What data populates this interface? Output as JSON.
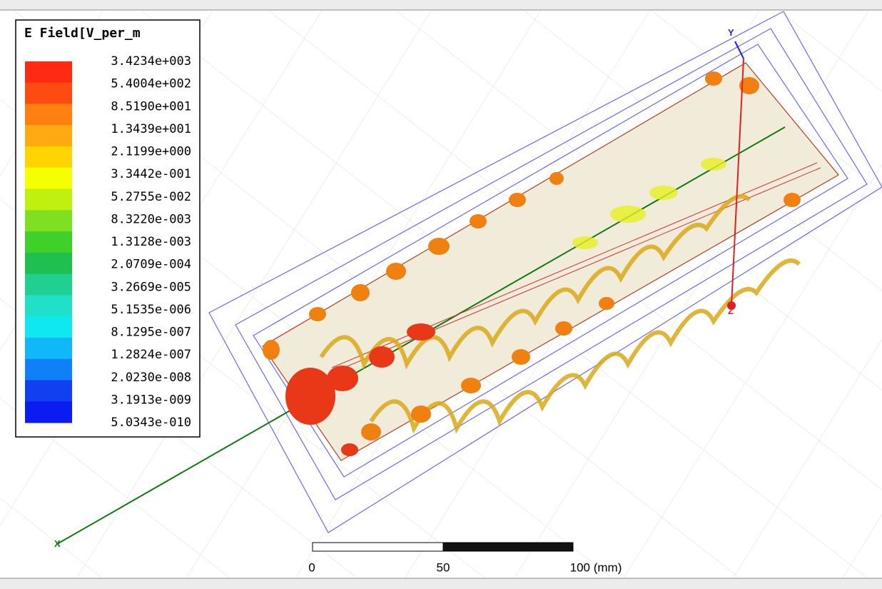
{
  "legend": {
    "title": "E Field[V_per_m",
    "labels": [
      "3.4234e+003",
      "5.4004e+002",
      "8.5190e+001",
      "1.3439e+001",
      "2.1199e+000",
      "3.3442e-001",
      "5.2755e-002",
      "8.3220e-003",
      "1.3128e-003",
      "2.0709e-004",
      "3.2669e-005",
      "5.1535e-006",
      "8.1295e-007",
      "1.2824e-007",
      "2.0230e-008",
      "3.1913e-009",
      "5.0343e-010"
    ],
    "colors": [
      "#ff2a12",
      "#ff4a10",
      "#ff8010",
      "#ffaa10",
      "#ffd400",
      "#f4ff00",
      "#c0f010",
      "#7ee020",
      "#3fd02a",
      "#20c050",
      "#20d090",
      "#20e0c8",
      "#10e8f0",
      "#10b8f8",
      "#1080f8",
      "#1040f0",
      "#0a1cf0"
    ]
  },
  "axes": {
    "y": "Y",
    "z": "Z",
    "x": "X"
  },
  "scale_bar": {
    "labels": [
      "0",
      "50",
      "100 (mm)"
    ]
  }
}
